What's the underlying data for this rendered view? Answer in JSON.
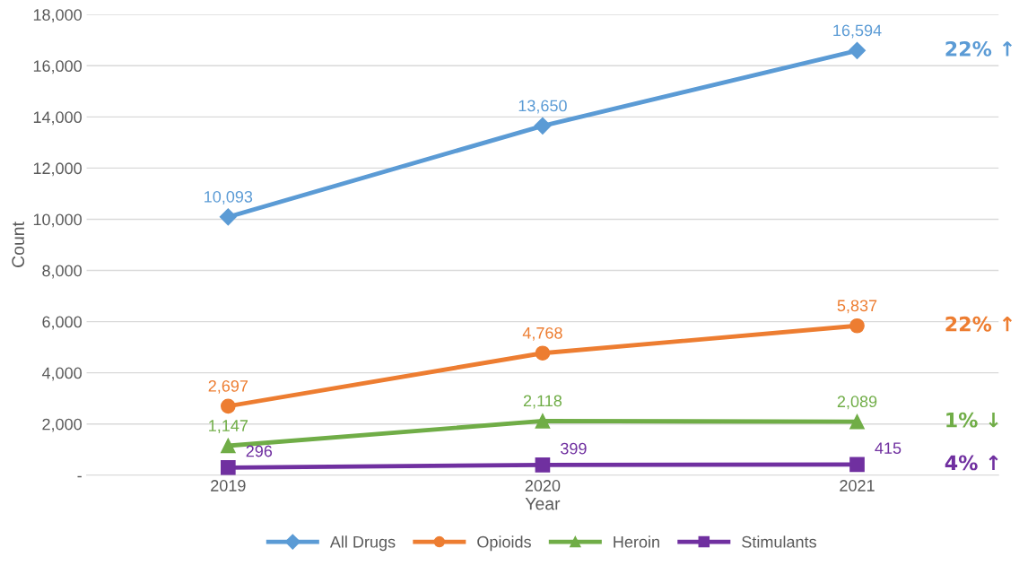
{
  "chart_data": {
    "type": "line",
    "xlabel": "Year",
    "ylabel": "Count",
    "categories": [
      "2019",
      "2020",
      "2021"
    ],
    "series": [
      {
        "name": "All Drugs",
        "color": "#5b9bd5",
        "marker": "diamond",
        "values": [
          10093,
          13650,
          16594
        ],
        "value_labels": [
          "10,093",
          "13,650",
          "16,594"
        ]
      },
      {
        "name": "Opioids",
        "color": "#ed7d31",
        "marker": "circle",
        "values": [
          2697,
          4768,
          5837
        ],
        "value_labels": [
          "2,697",
          "4,768",
          "5,837"
        ]
      },
      {
        "name": "Heroin",
        "color": "#70ad47",
        "marker": "triangle",
        "values": [
          1147,
          2118,
          2089
        ],
        "value_labels": [
          "1,147",
          "2,118",
          "2,089"
        ]
      },
      {
        "name": "Stimulants",
        "color": "#7030a0",
        "marker": "square",
        "values": [
          296,
          399,
          415
        ],
        "value_labels": [
          "296",
          "399",
          "415"
        ]
      }
    ],
    "annotations": [
      "22% ↑",
      "22% ↑",
      "1% ↓",
      "4% ↑"
    ],
    "ylim": [
      0,
      18000
    ],
    "yticks": [
      {
        "value": 0,
        "label": "-"
      },
      {
        "value": 2000,
        "label": "2,000"
      },
      {
        "value": 4000,
        "label": "4,000"
      },
      {
        "value": 6000,
        "label": "6,000"
      },
      {
        "value": 8000,
        "label": "8,000"
      },
      {
        "value": 10000,
        "label": "10,000"
      },
      {
        "value": 12000,
        "label": "12,000"
      },
      {
        "value": 14000,
        "label": "14,000"
      },
      {
        "value": 16000,
        "label": "16,000"
      },
      {
        "value": 18000,
        "label": "18,000"
      }
    ],
    "grid": "y",
    "legend": "bottom",
    "line_style": "solid"
  }
}
